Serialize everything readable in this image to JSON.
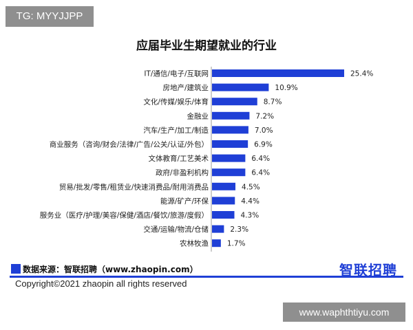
{
  "tag": {
    "label": "TG: MYYJJPP"
  },
  "chart_data": {
    "type": "bar",
    "orientation": "horizontal",
    "title": "应届毕业生期望就业的行业",
    "categories": [
      "IT/通信/电子/互联网",
      "房地产/建筑业",
      "文化/传媒/娱乐/体育",
      "金融业",
      "汽车/生产/加工/制造",
      "商业服务（咨询/财会/法律/广告/公关/认证/外包）",
      "文体教育/工艺美术",
      "政府/非盈利机构",
      "贸易/批发/零售/租赁业/快速消费品/耐用消费品",
      "能源/矿产/环保",
      "服务业（医疗/护理/美容/保健/酒店/餐饮/旅游/度假）",
      "交通/运输/物流/仓储",
      "农林牧渔"
    ],
    "values": [
      25.4,
      10.9,
      8.7,
      7.2,
      7.0,
      6.9,
      6.4,
      6.4,
      4.5,
      4.4,
      4.3,
      2.3,
      1.7
    ],
    "value_labels": [
      "25.4%",
      "10.9%",
      "8.7%",
      "7.2%",
      "7.0%",
      "6.9%",
      "6.4%",
      "6.4%",
      "4.5%",
      "4.4%",
      "4.3%",
      "2.3%",
      "1.7%"
    ],
    "unit": "%",
    "bar_color": "#1f3fd6",
    "grid": false
  },
  "footer": {
    "source": "数据来源：智联招聘（www.zhaopin.com）",
    "logo": "智联招聘",
    "copyright": "Copyright©2021 zhaopin all rights reserved",
    "accent_color": "#1f3fd6"
  },
  "watermark": {
    "label": "www.waphthtiyu.com"
  }
}
